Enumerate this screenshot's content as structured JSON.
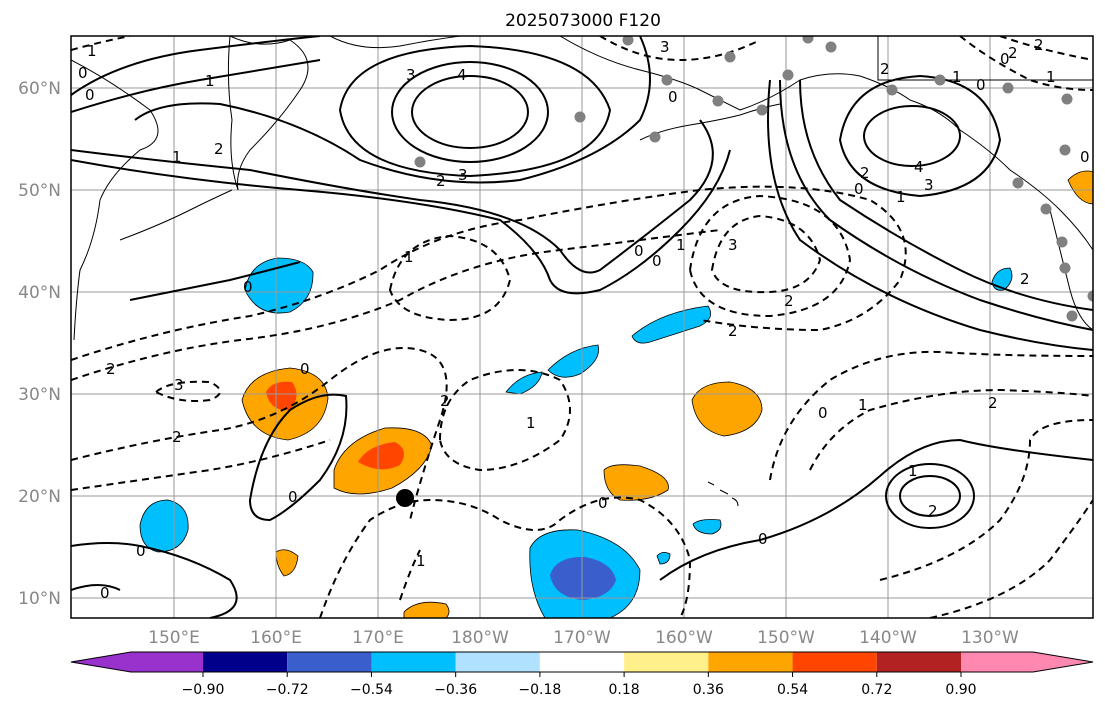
{
  "title": "2025073000 F120",
  "axes": {
    "lat_ticks": [
      "60°N",
      "50°N",
      "40°N",
      "30°N",
      "20°N",
      "10°N"
    ],
    "lon_ticks": [
      "150°E",
      "160°E",
      "170°E",
      "180°W",
      "170°W",
      "160°W",
      "150°W",
      "140°W",
      "130°W"
    ]
  },
  "colorbar": {
    "ticks": [
      "−0.90",
      "−0.72",
      "−0.54",
      "−0.36",
      "−0.18",
      "0.18",
      "0.36",
      "0.54",
      "0.72",
      "0.90"
    ],
    "colors": [
      "#9932cc",
      "#00008b",
      "#3a5fcd",
      "#00bfff",
      "#b0e2ff",
      "#ffffff",
      "#fff08c",
      "#ffa500",
      "#ff4500",
      "#b22222",
      "#ff88b0"
    ]
  },
  "contour_labels": {
    "l0": "0",
    "l1": "1",
    "l2": "2",
    "l3": "3",
    "l4": "4"
  },
  "markers": {
    "storm_marker": "black filled circle",
    "station_marker": "gray dots"
  }
}
